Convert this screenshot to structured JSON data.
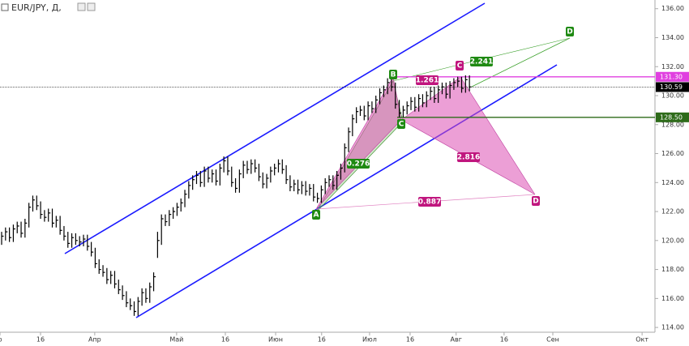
{
  "chart_data": {
    "type": "ohlc",
    "title": "EUR/JPY, Д,",
    "x": [
      0,
      1,
      2,
      3,
      4,
      5,
      6,
      7,
      8,
      9,
      10,
      11,
      12,
      13,
      14,
      15,
      16,
      17,
      18,
      19,
      20,
      21,
      22,
      23,
      24,
      25,
      26,
      27,
      28,
      29,
      30,
      31,
      32,
      33,
      34,
      35,
      36,
      37,
      38,
      39,
      40,
      41,
      42,
      43,
      44,
      45,
      46,
      47,
      48,
      49,
      50,
      51,
      52,
      53,
      54,
      55,
      56,
      57,
      58,
      59,
      60,
      61,
      62,
      63,
      64,
      65,
      66,
      67,
      68,
      69,
      70,
      71,
      72,
      73,
      74,
      75,
      76,
      77,
      78,
      79,
      80,
      81,
      82,
      83,
      84,
      85,
      86,
      87,
      88,
      89,
      90,
      91,
      92,
      93,
      94,
      95,
      96,
      97,
      98,
      99,
      100,
      101,
      102,
      103,
      104,
      105,
      106,
      107,
      108,
      109,
      110,
      111,
      112,
      113,
      114,
      115,
      116,
      117,
      118,
      119,
      120
    ],
    "high": [
      120.6,
      120.9,
      120.9,
      121.1,
      121.3,
      121.3,
      121.5,
      122.6,
      123.1,
      123.1,
      122.7,
      122.1,
      122.2,
      122.2,
      121.7,
      121.7,
      121.0,
      120.6,
      120.5,
      120.5,
      120.3,
      120.4,
      120.4,
      119.9,
      119.5,
      118.7,
      118.3,
      118.1,
      117.9,
      117.9,
      117.3,
      116.9,
      116.5,
      116.0,
      115.8,
      116.1,
      116.7,
      116.7,
      117.1,
      117.8,
      120.6,
      121.8,
      121.8,
      122.1,
      122.3,
      122.6,
      122.9,
      123.5,
      124.1,
      124.5,
      124.8,
      124.8,
      125.1,
      125.1,
      124.9,
      124.9,
      125.3,
      125.8,
      125.8,
      125.1,
      124.3,
      124.9,
      125.5,
      125.5,
      125.6,
      125.6,
      125.3,
      124.7,
      124.6,
      125.1,
      125.3,
      125.6,
      125.6,
      125.2,
      124.5,
      124.2,
      124.2,
      124.1,
      124.1,
      123.9,
      123.9,
      123.3,
      123.8,
      124.3,
      124.5,
      124.5,
      124.8,
      125.3,
      126.7,
      127.8,
      128.7,
      129.2,
      129.3,
      129.3,
      129.6,
      129.6,
      130.0,
      130.5,
      130.7,
      131.2,
      131.2,
      130.9,
      129.7,
      129.3,
      129.6,
      129.9,
      129.9,
      130.1,
      130.1,
      130.3,
      130.6,
      130.6,
      130.7,
      130.9,
      130.9,
      131.0,
      131.2,
      131.3,
      131.3,
      131.4,
      131.4
    ],
    "low": [
      119.7,
      120.0,
      119.9,
      119.9,
      120.5,
      120.2,
      120.2,
      120.9,
      122.0,
      122.1,
      121.5,
      121.3,
      121.3,
      120.9,
      120.9,
      120.4,
      120.0,
      119.5,
      119.5,
      119.7,
      119.6,
      119.6,
      119.3,
      118.9,
      118.1,
      117.7,
      117.5,
      117.0,
      117.0,
      116.7,
      116.3,
      115.9,
      115.4,
      115.2,
      114.8,
      114.8,
      115.5,
      115.7,
      115.7,
      116.5,
      118.8,
      119.7,
      121.0,
      121.0,
      121.5,
      121.7,
      122.0,
      122.3,
      122.9,
      123.5,
      123.9,
      123.7,
      123.7,
      124.0,
      124.0,
      123.8,
      123.8,
      124.7,
      124.5,
      123.7,
      123.3,
      123.3,
      124.3,
      124.6,
      124.6,
      124.7,
      124.1,
      123.6,
      123.6,
      124.0,
      124.5,
      124.7,
      124.6,
      123.9,
      123.4,
      123.4,
      123.2,
      123.2,
      123.1,
      123.1,
      122.7,
      122.6,
      122.6,
      123.2,
      123.7,
      123.5,
      123.5,
      124.2,
      124.7,
      126.1,
      127.2,
      128.1,
      128.6,
      128.3,
      128.3,
      128.8,
      128.8,
      129.4,
      129.9,
      130.1,
      130.3,
      129.1,
      128.5,
      128.5,
      128.7,
      129.0,
      128.9,
      128.9,
      129.2,
      129.2,
      129.7,
      129.5,
      129.5,
      130.1,
      129.8,
      129.8,
      130.4,
      130.6,
      130.2,
      130.2,
      130.3
    ],
    "close": [
      120.3,
      120.6,
      120.2,
      120.8,
      121.0,
      120.5,
      121.2,
      122.3,
      122.8,
      122.4,
      121.8,
      121.6,
      121.9,
      121.2,
      121.4,
      120.7,
      120.3,
      119.8,
      120.2,
      120.0,
      119.9,
      120.1,
      119.6,
      119.2,
      118.4,
      118.0,
      117.8,
      117.3,
      117.6,
      117.0,
      116.6,
      116.2,
      115.7,
      115.5,
      115.1,
      115.8,
      116.4,
      116.0,
      116.8,
      117.5,
      120.0,
      121.5,
      121.3,
      121.8,
      122.0,
      122.3,
      122.6,
      123.2,
      123.8,
      124.2,
      124.5,
      124.0,
      124.8,
      124.3,
      124.6,
      124.1,
      125.0,
      125.5,
      124.8,
      124.0,
      123.6,
      124.6,
      125.2,
      124.9,
      125.3,
      125.0,
      124.4,
      123.9,
      124.3,
      124.8,
      125.0,
      125.3,
      124.9,
      124.2,
      123.7,
      123.9,
      123.5,
      123.8,
      123.4,
      123.6,
      123.0,
      122.9,
      123.5,
      124.0,
      124.2,
      123.8,
      124.5,
      125.0,
      126.4,
      127.5,
      128.4,
      128.9,
      129.0,
      128.6,
      129.3,
      129.1,
      129.7,
      130.2,
      130.4,
      130.9,
      130.6,
      129.4,
      128.8,
      129.0,
      129.3,
      129.6,
      129.2,
      129.8,
      129.5,
      130.0,
      130.3,
      129.8,
      130.4,
      130.6,
      130.1,
      130.7,
      130.9,
      131.0,
      130.5,
      131.1,
      130.6
    ],
    "color": "#000000",
    "xlim": [
      0,
      168
    ],
    "xticks": [
      {
        "value": 0,
        "label": "р"
      },
      {
        "value": 10.4,
        "label": "16"
      },
      {
        "value": 24.3,
        "label": "Апр"
      },
      {
        "value": 45.3,
        "label": "Май"
      },
      {
        "value": 57.8,
        "label": "16"
      },
      {
        "value": 70.7,
        "label": "Июн"
      },
      {
        "value": 82.5,
        "label": "16"
      },
      {
        "value": 94.8,
        "label": "Июл"
      },
      {
        "value": 105.2,
        "label": "16"
      },
      {
        "value": 117,
        "label": "Авг"
      },
      {
        "value": 129.3,
        "label": "16"
      },
      {
        "value": 141.8,
        "label": "Сен"
      },
      {
        "value": 164.7,
        "label": "Окт"
      }
    ],
    "ylim": [
      113.67,
      136.6
    ],
    "yticks": [
      {
        "value": 114,
        "label": "114.00"
      },
      {
        "value": 116,
        "label": "116.00"
      },
      {
        "value": 118,
        "label": "118.00"
      },
      {
        "value": 120,
        "label": "120.00"
      },
      {
        "value": 122,
        "label": "122.00"
      },
      {
        "value": 124,
        "label": "124.00"
      },
      {
        "value": 126,
        "label": "126.00"
      },
      {
        "value": 128,
        "label": "128.00"
      },
      {
        "value": 130,
        "label": "130.00"
      },
      {
        "value": 132,
        "label": "132.00"
      },
      {
        "value": 134,
        "label": "134.00"
      },
      {
        "value": 136,
        "label": "136.00"
      }
    ],
    "levels": [
      {
        "value": 131.3,
        "label": "131.30",
        "color": "#e040e0"
      },
      {
        "value": 130.59,
        "label": "130.59",
        "color": "#000000"
      },
      {
        "value": 128.5,
        "label": "128.50",
        "color": "#2e6b1a"
      }
    ],
    "annotations": {
      "green_points": [
        "A",
        "B",
        "C",
        "D"
      ],
      "green_ratio": "2.241",
      "pink_points": [
        "C",
        "D"
      ],
      "pink_ratios": [
        "1.261",
        "0.276",
        "2.816",
        "0.887"
      ]
    }
  }
}
